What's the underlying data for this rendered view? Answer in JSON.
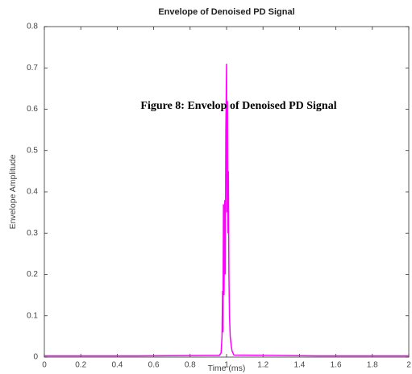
{
  "chart_data": {
    "type": "line",
    "title": "Envelope of Denoised PD Signal",
    "xlabel": "Time (ms)",
    "ylabel": "Envelope Amplitude",
    "annotation": "Figure 8: Envelop of Denoised PD Signal",
    "x": [
      0,
      0.5,
      0.96,
      0.97,
      0.975,
      0.978,
      0.98,
      0.983,
      0.986,
      0.99,
      0.993,
      0.996,
      1.0,
      1.002,
      1.005,
      1.008,
      1.01,
      1.013,
      1.016,
      1.02,
      1.025,
      1.03,
      1.04,
      1.5,
      2
    ],
    "values": [
      0.003,
      0.003,
      0.004,
      0.01,
      0.05,
      0.16,
      0.06,
      0.37,
      0.15,
      0.38,
      0.2,
      0.55,
      0.71,
      0.35,
      0.62,
      0.3,
      0.45,
      0.2,
      0.1,
      0.05,
      0.03,
      0.015,
      0.005,
      0.003,
      0.003
    ],
    "color": "#ff00ff",
    "xlim": [
      0,
      2
    ],
    "xticks": [
      0,
      0.2,
      0.4,
      0.6,
      0.8,
      1,
      1.2,
      1.4,
      1.6,
      1.8,
      2
    ],
    "ylim": [
      0,
      0.8
    ],
    "yticks": [
      0,
      0.1,
      0.2,
      0.3,
      0.4,
      0.5,
      0.6,
      0.7,
      0.8
    ],
    "grid": false
  }
}
